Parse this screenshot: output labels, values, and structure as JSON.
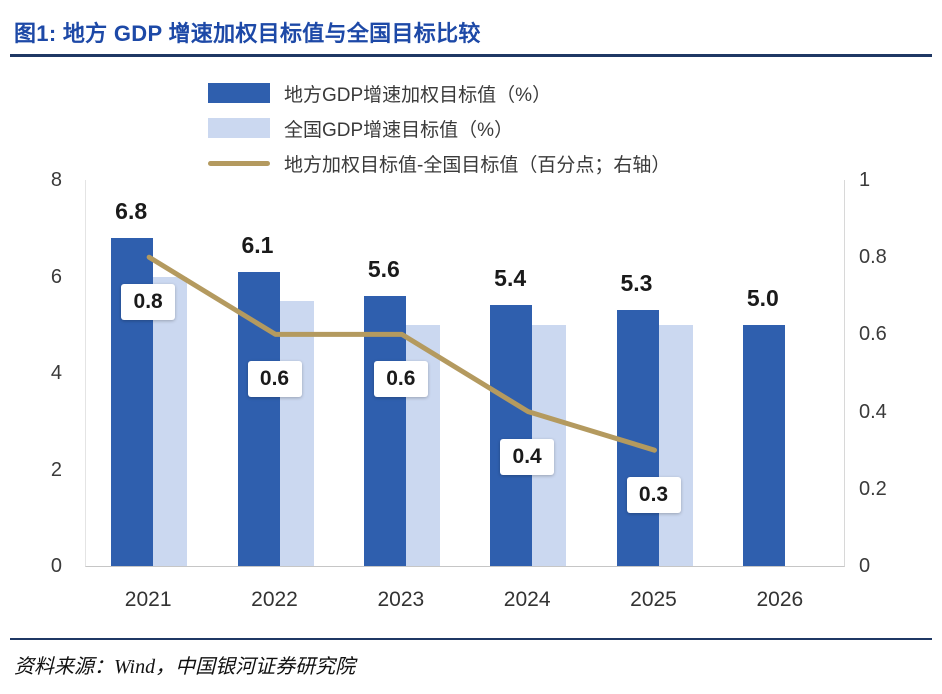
{
  "header": {
    "title": "图1: 地方 GDP 增速加权目标值与全国目标比较"
  },
  "footer": {
    "source": "资料来源：Wind，中国银河证券研究院"
  },
  "colors": {
    "title_blue": "#1D49A7",
    "rule_navy": "#1F3864",
    "bar_dark_blue": "#2F5FAE",
    "bar_light_blue": "#CBD8F0",
    "line_tan": "#B49A5F"
  },
  "chart_data": {
    "type": "bar",
    "subtype": "bar-line-combo",
    "title": "地方 GDP 增速加权目标值与全国目标比较",
    "categories": [
      "2021",
      "2022",
      "2023",
      "2024",
      "2025",
      "2026"
    ],
    "series": [
      {
        "name": "地方GDP增速加权目标值（%）",
        "color": "#2F5FAE",
        "values": [
          6.8,
          6.1,
          5.6,
          5.4,
          5.3,
          5.0
        ],
        "labels": [
          "6.8",
          "6.1",
          "5.6",
          "5.4",
          "5.3",
          "5.0"
        ]
      },
      {
        "name": "全国GDP增速目标值（%）",
        "color": "#CBD8F0",
        "values": [
          6.0,
          5.5,
          5.0,
          5.0,
          5.0,
          null
        ]
      }
    ],
    "line_series": {
      "name": "地方加权目标值-全国目标值（百分点；右轴）",
      "color": "#B49A5F",
      "axis": "right",
      "values": [
        0.8,
        0.6,
        0.6,
        0.4,
        0.3,
        null
      ],
      "labels": [
        "0.8",
        "0.6",
        "0.6",
        "0.4",
        "0.3",
        null
      ]
    },
    "left_axis": {
      "min": 0,
      "max": 8,
      "ticks": [
        0,
        2,
        4,
        6,
        8
      ]
    },
    "right_axis": {
      "min": 0,
      "max": 1,
      "ticks": [
        0,
        0.2,
        0.4,
        0.6,
        0.8,
        1
      ]
    },
    "legend_position": "top",
    "grid": false
  }
}
